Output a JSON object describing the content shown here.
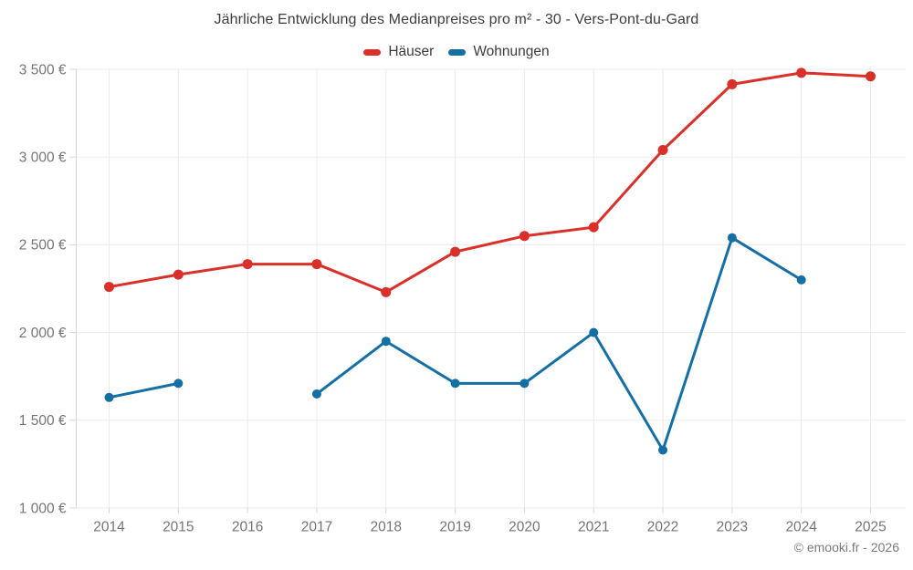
{
  "header": {
    "title": "Jährliche Entwicklung des Medianpreises pro m² - 30 - Vers-Pont-du-Gard"
  },
  "footer": {
    "credit": "© emooki.fr - 2026"
  },
  "chart_data": {
    "type": "line",
    "title": "Jährliche Entwicklung des Medianpreises pro m² - 30 - Vers-Pont-du-Gard",
    "x_categories": [
      "2014",
      "2015",
      "2016",
      "2017",
      "2018",
      "2019",
      "2020",
      "2021",
      "2022",
      "2023",
      "2024",
      "2025"
    ],
    "series": [
      {
        "name": "Häuser",
        "color": "#d9302a",
        "values": [
          2260,
          2330,
          2390,
          2390,
          2230,
          2460,
          2550,
          2600,
          3040,
          3415,
          3480,
          3460
        ]
      },
      {
        "name": "Wohnungen",
        "color": "#146fa5",
        "values": [
          1630,
          1710,
          null,
          1650,
          1950,
          1710,
          1710,
          2000,
          1330,
          2540,
          2300,
          null
        ]
      }
    ],
    "unit": "€ / m²",
    "ylim": [
      1000,
      3500
    ],
    "ytick_step": 500,
    "ytick_labels": [
      "1 000 €",
      "1 500 €",
      "2 000 €",
      "2 500 €",
      "3 000 €",
      "3 500 €"
    ],
    "grid": true,
    "legend_position": "top",
    "grid_color": "#ebebeb",
    "axis_color": "#d7d7d7",
    "label_color": "#757575",
    "title_color": "#3c3c3c"
  }
}
